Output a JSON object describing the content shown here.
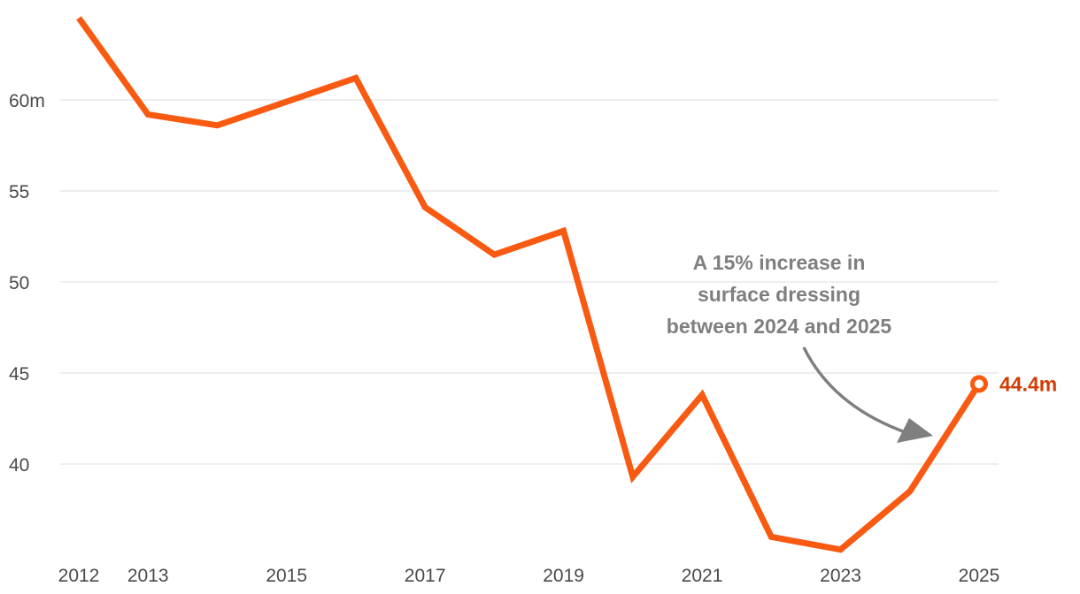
{
  "chart_data": {
    "type": "line",
    "title": "",
    "xlabel": "",
    "ylabel": "",
    "x": [
      2012,
      2013,
      2014,
      2015,
      2016,
      2017,
      2018,
      2019,
      2020,
      2021,
      2022,
      2023,
      2024,
      2025
    ],
    "series": [
      {
        "values": [
          64.5,
          59.2,
          58.6,
          59.9,
          61.2,
          54.1,
          51.5,
          52.8,
          39.3,
          43.8,
          36.0,
          35.3,
          38.5,
          44.4
        ]
      }
    ],
    "xlim": [
      2012,
      2025
    ],
    "ylim": [
      35,
      65
    ],
    "y_ticks": [
      {
        "value": 40,
        "label": "40"
      },
      {
        "value": 45,
        "label": "45"
      },
      {
        "value": 50,
        "label": "50"
      },
      {
        "value": 55,
        "label": "55"
      },
      {
        "value": 60,
        "label": "60m"
      }
    ],
    "x_ticks": [
      {
        "value": 2012,
        "label": "2012"
      },
      {
        "value": 2013,
        "label": "2013"
      },
      {
        "value": 2015,
        "label": "2015"
      },
      {
        "value": 2017,
        "label": "2017"
      },
      {
        "value": 2019,
        "label": "2019"
      },
      {
        "value": 2021,
        "label": "2021"
      },
      {
        "value": 2023,
        "label": "2023"
      },
      {
        "value": 2025,
        "label": "2025"
      }
    ],
    "grid": "horizontal",
    "colors": {
      "line": "#f85a12",
      "end_label": "#d13d04",
      "annotation": "#7f7f7f",
      "grid": "#dcdcdc",
      "axis_text": "#4a4a4a"
    },
    "end_label": "44.4m",
    "annotation": {
      "lines": [
        "A 15% increase in",
        "surface dressing",
        "between 2024 and 2025"
      ],
      "points_to_year": 2025
    }
  }
}
